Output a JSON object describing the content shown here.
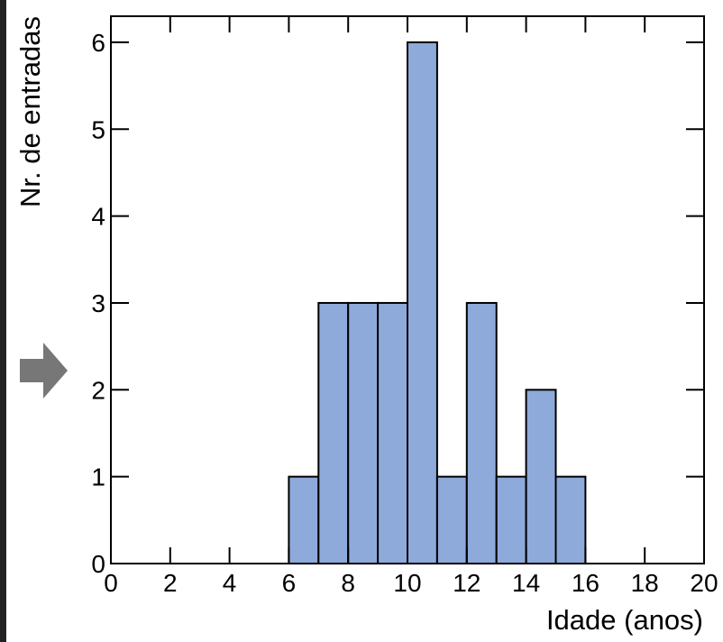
{
  "chart_data": {
    "type": "histogram",
    "xlabel": "Idade (anos)",
    "ylabel": "Nr. de entradas",
    "bins": [
      6,
      7,
      8,
      9,
      10,
      11,
      12,
      13,
      14,
      15,
      16
    ],
    "values": [
      1,
      3,
      3,
      3,
      6,
      1,
      3,
      1,
      2,
      1
    ],
    "color": "#8eaadb",
    "xlim": [
      0,
      20
    ],
    "xticks": [
      0,
      2,
      4,
      6,
      8,
      10,
      12,
      14,
      16,
      18,
      20
    ],
    "ylim": [
      0,
      6.3
    ],
    "yticks": [
      0,
      1,
      2,
      3,
      4,
      5,
      6
    ]
  }
}
